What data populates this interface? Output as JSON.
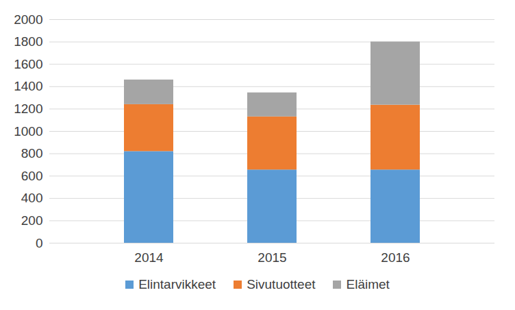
{
  "chart_data": {
    "type": "bar",
    "stacked": true,
    "grid": true,
    "legend": "bottom",
    "categories": [
      "2014",
      "2015",
      "2016"
    ],
    "series": [
      {
        "name": "Elintarvikkeet",
        "color": "#5b9bd5",
        "values": [
          820,
          655,
          655
        ]
      },
      {
        "name": "Sivutuotteet",
        "color": "#ed7d31",
        "values": [
          420,
          475,
          580
        ]
      },
      {
        "name": "Eläimet",
        "color": "#a5a5a5",
        "values": [
          220,
          215,
          565
        ]
      }
    ],
    "ylim": [
      0,
      2000
    ],
    "yticks": [
      0,
      200,
      400,
      600,
      800,
      1000,
      1200,
      1400,
      1600,
      1800,
      2000
    ]
  }
}
